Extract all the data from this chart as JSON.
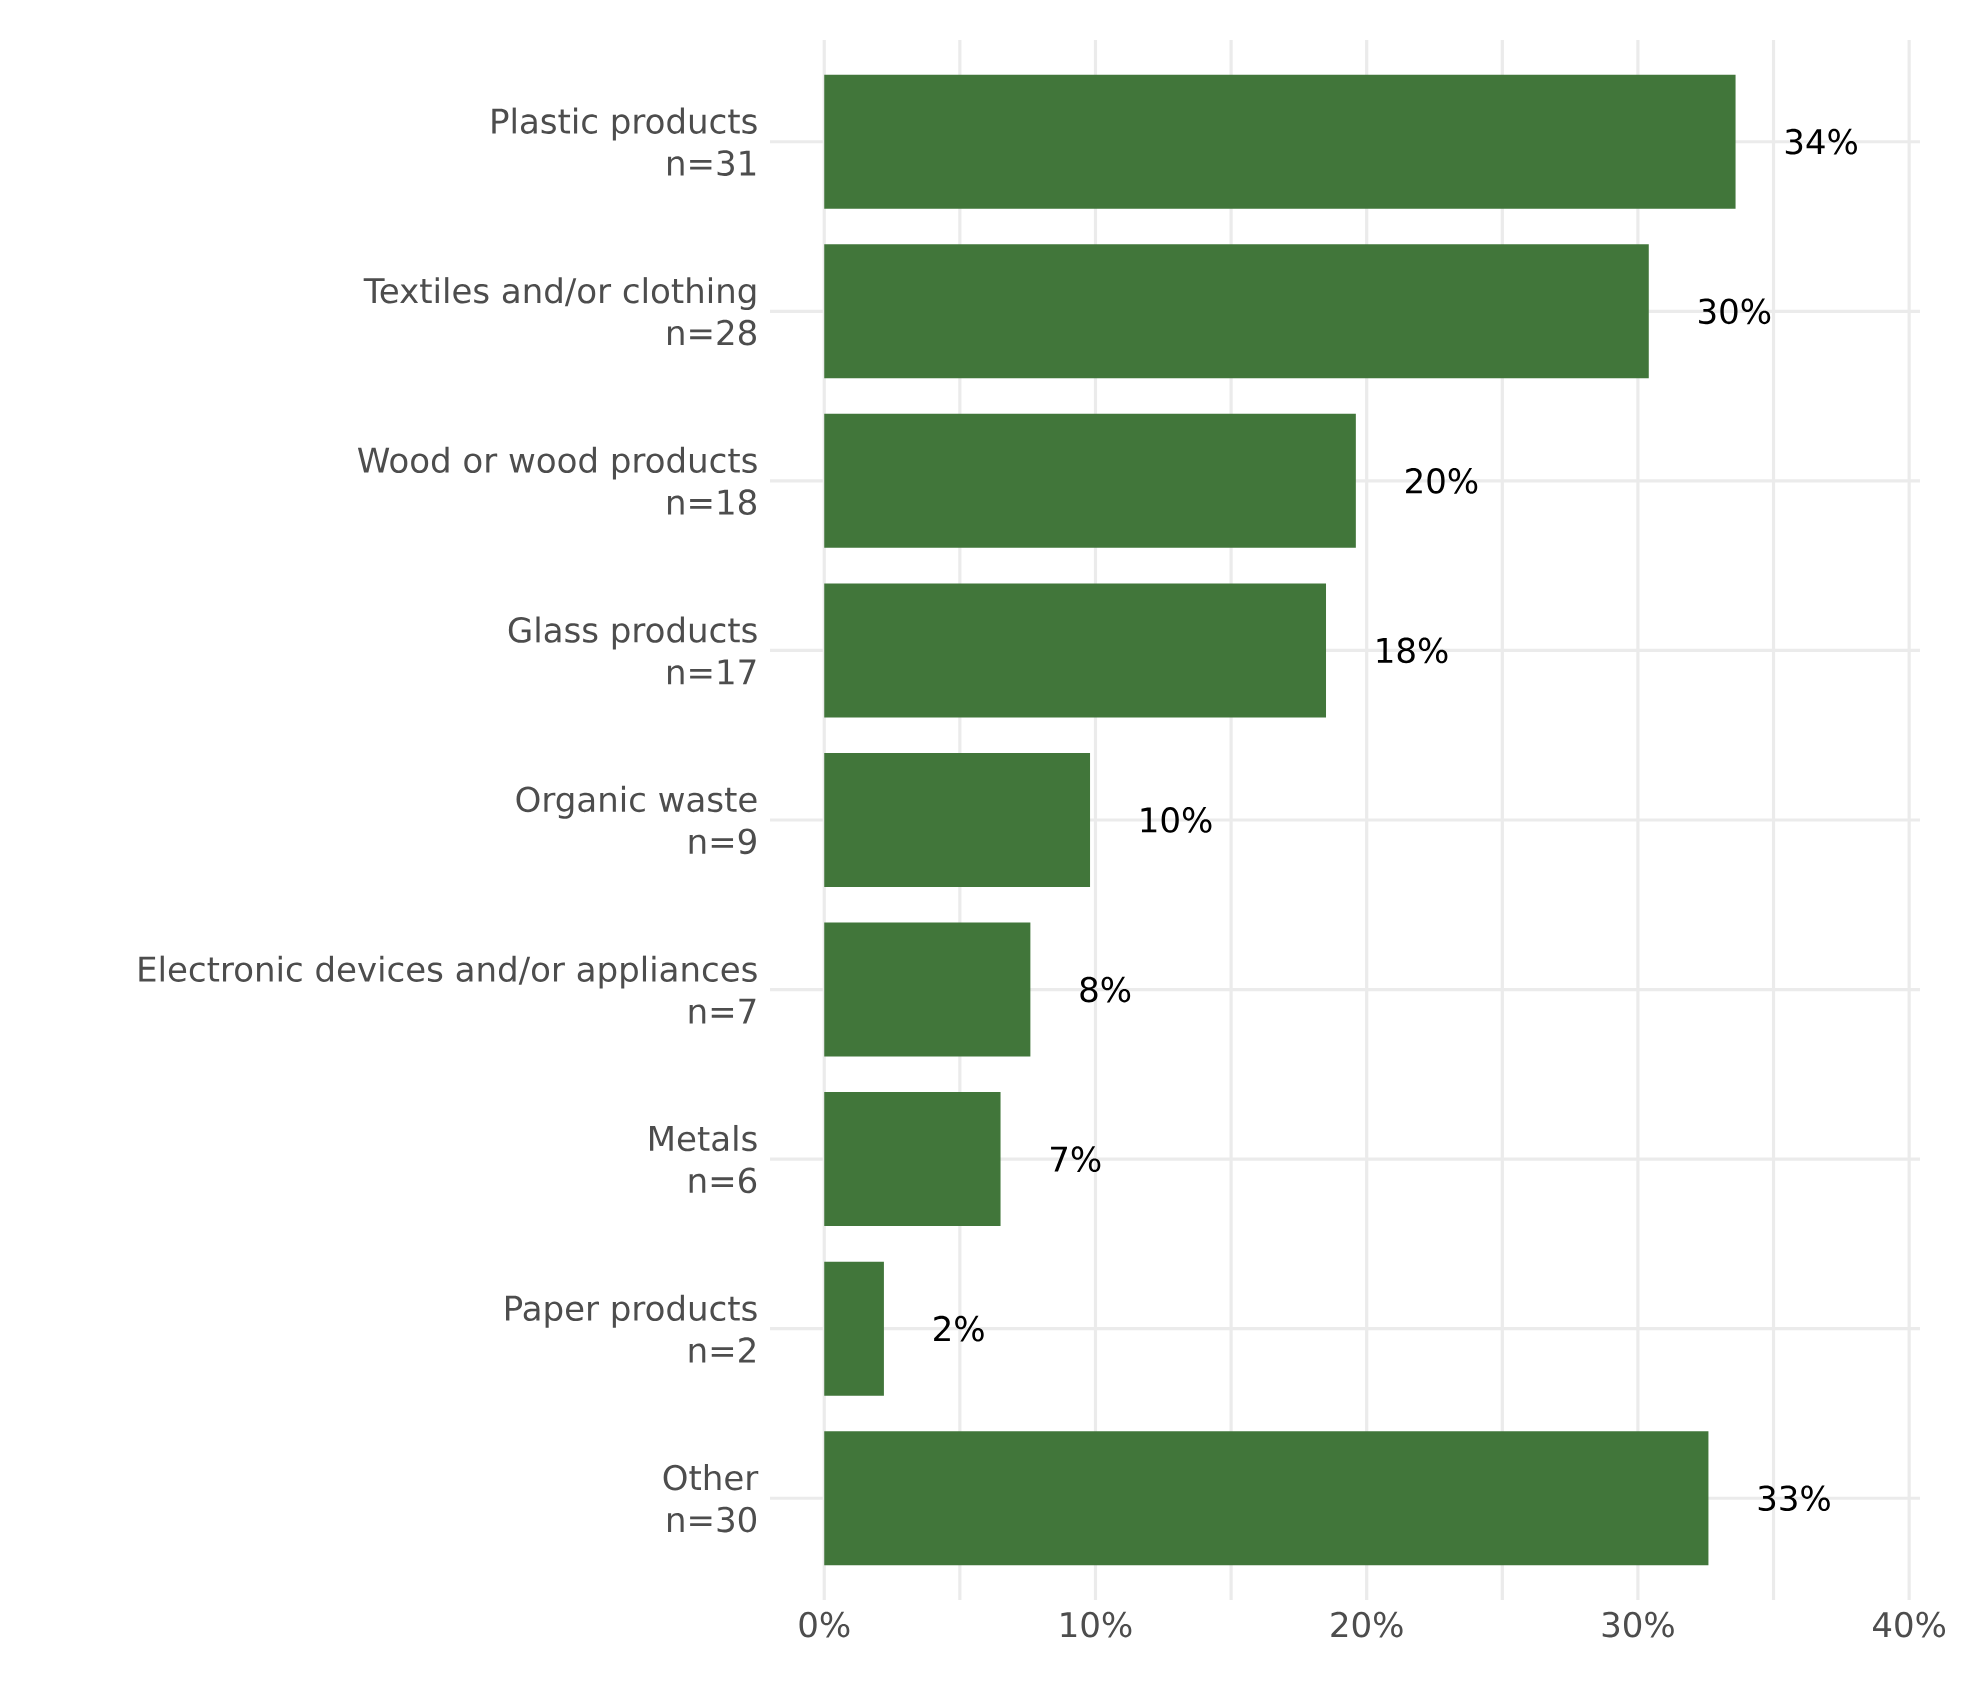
{
  "chart_data": {
    "type": "bar",
    "orientation": "horizontal",
    "categories": [
      "Plastic products\nn=31",
      "Textiles and/or clothing\nn=28",
      "Wood or wood products\nn=18",
      "Glass products\nn=17",
      "Organic waste\nn=9",
      "Electronic devices and/or appliances\nn=7",
      "Metals\nn=6",
      "Paper products\nn=2",
      "Other\nn=30"
    ],
    "values": [
      33.6,
      30.4,
      19.6,
      18.5,
      9.8,
      7.6,
      6.5,
      2.2,
      32.6
    ],
    "value_labels": [
      "34%",
      "30%",
      "20%",
      "18%",
      "10%",
      "8%",
      "7%",
      "2%",
      "33%"
    ],
    "color": "#41763a",
    "xlim": [
      -2,
      40.4
    ],
    "xticks": [
      {
        "value": 0,
        "label": "0%"
      },
      {
        "value": 5,
        "label": null
      },
      {
        "value": 10,
        "label": "10%"
      },
      {
        "value": 15,
        "label": null
      },
      {
        "value": 20,
        "label": "20%"
      },
      {
        "value": 25,
        "label": null
      },
      {
        "value": 30,
        "label": "30%"
      },
      {
        "value": 35,
        "label": null
      },
      {
        "value": 40,
        "label": "40%"
      }
    ],
    "grid": true
  }
}
